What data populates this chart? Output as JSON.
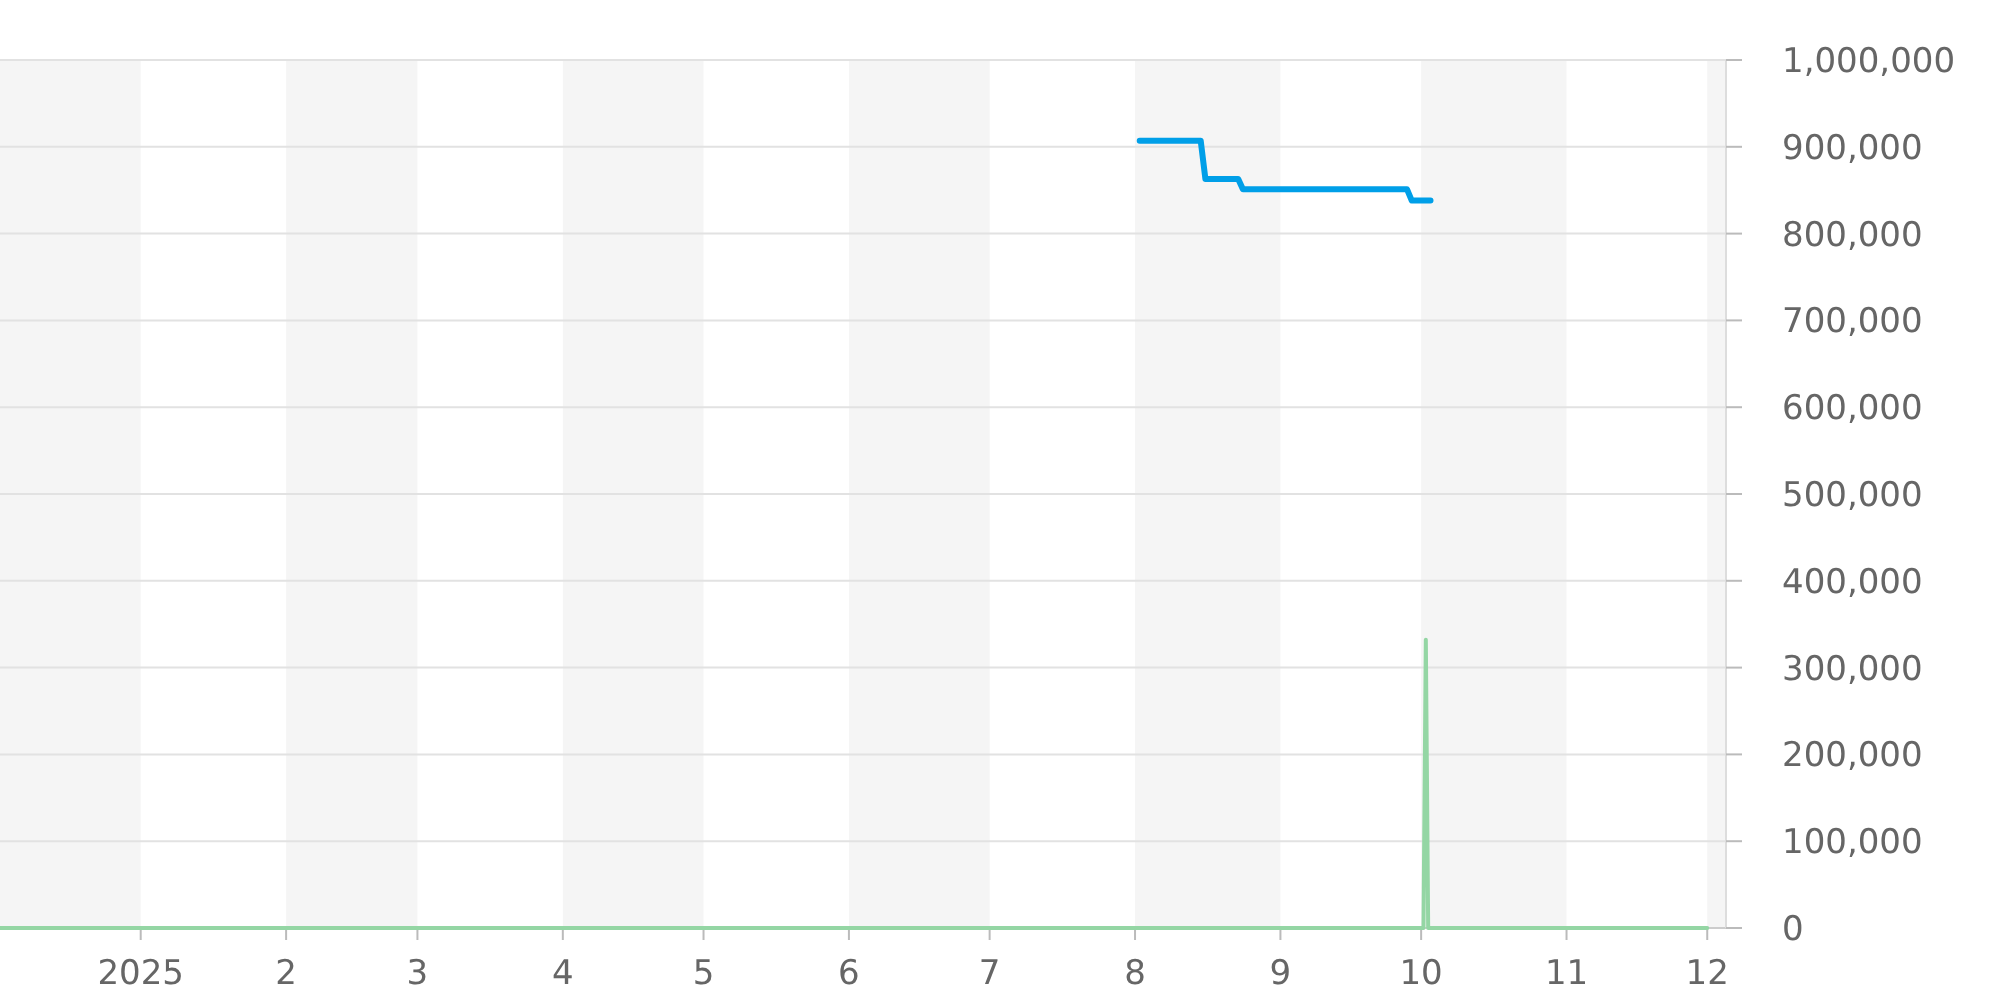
{
  "chart_data": {
    "type": "line",
    "xlim": [
      "2024-12-02",
      "2025-12-05"
    ],
    "xticks": [
      {
        "value": "2025-01-01",
        "label": "2025"
      },
      {
        "value": "2025-02-01",
        "label": "2"
      },
      {
        "value": "2025-03-01",
        "label": "3"
      },
      {
        "value": "2025-04-01",
        "label": "4"
      },
      {
        "value": "2025-05-01",
        "label": "5"
      },
      {
        "value": "2025-06-01",
        "label": "6"
      },
      {
        "value": "2025-07-01",
        "label": "7"
      },
      {
        "value": "2025-08-01",
        "label": "8"
      },
      {
        "value": "2025-09-01",
        "label": "9"
      },
      {
        "value": "2025-10-01",
        "label": "10"
      },
      {
        "value": "2025-11-01",
        "label": "11"
      },
      {
        "value": "2025-12-01",
        "label": "12"
      }
    ],
    "ylim": [
      0,
      1000000
    ],
    "yticks": [
      0,
      {
        "value": 100000,
        "label": "100,000"
      },
      {
        "value": 200000,
        "label": "200,000"
      },
      {
        "value": 300000,
        "label": "300,000"
      },
      {
        "value": 400000,
        "label": "400,000"
      },
      {
        "value": 500000,
        "label": "500,000"
      },
      {
        "value": 600000,
        "label": "600,000"
      },
      {
        "value": 700000,
        "label": "700,000"
      },
      {
        "value": 800000,
        "label": "800,000"
      },
      {
        "value": 900000,
        "label": "900,000"
      },
      {
        "value": 1000000,
        "label": "1,000,000"
      }
    ],
    "grid": "y",
    "marker": "none",
    "bands": [
      {
        "axis": "x",
        "from": "2024-12-02",
        "to": "2025-01-01",
        "color": "#f5f5f5"
      },
      {
        "axis": "x",
        "from": "2025-02-01",
        "to": "2025-03-01",
        "color": "#f5f5f5"
      },
      {
        "axis": "x",
        "from": "2025-04-01",
        "to": "2025-05-01",
        "color": "#f5f5f5"
      },
      {
        "axis": "x",
        "from": "2025-06-01",
        "to": "2025-07-01",
        "color": "#f5f5f5"
      },
      {
        "axis": "x",
        "from": "2025-08-01",
        "to": "2025-09-01",
        "color": "#f5f5f5"
      },
      {
        "axis": "x",
        "from": "2025-10-01",
        "to": "2025-11-01",
        "color": "#f5f5f5"
      },
      {
        "axis": "x",
        "from": "2025-12-01",
        "to": "2025-12-05",
        "color": "#f5f5f5"
      }
    ],
    "series": [
      {
        "color": "#94d6a4",
        "x": [
          "2024-12-02",
          "2025-10-01T12:00",
          "2025-10-02",
          "2025-10-02T12:00",
          "2025-12-01"
        ],
        "values": [
          0,
          0,
          332000,
          0,
          0
        ]
      },
      {
        "color": "#009fe8",
        "x": [
          "2025-08-02",
          "2025-08-15",
          "2025-08-16",
          "2025-08-23",
          "2025-08-24",
          "2025-09-28",
          "2025-09-29",
          "2025-10-03"
        ],
        "values": [
          907000,
          907000,
          863000,
          863000,
          851000,
          851000,
          838000,
          838000
        ]
      }
    ]
  }
}
